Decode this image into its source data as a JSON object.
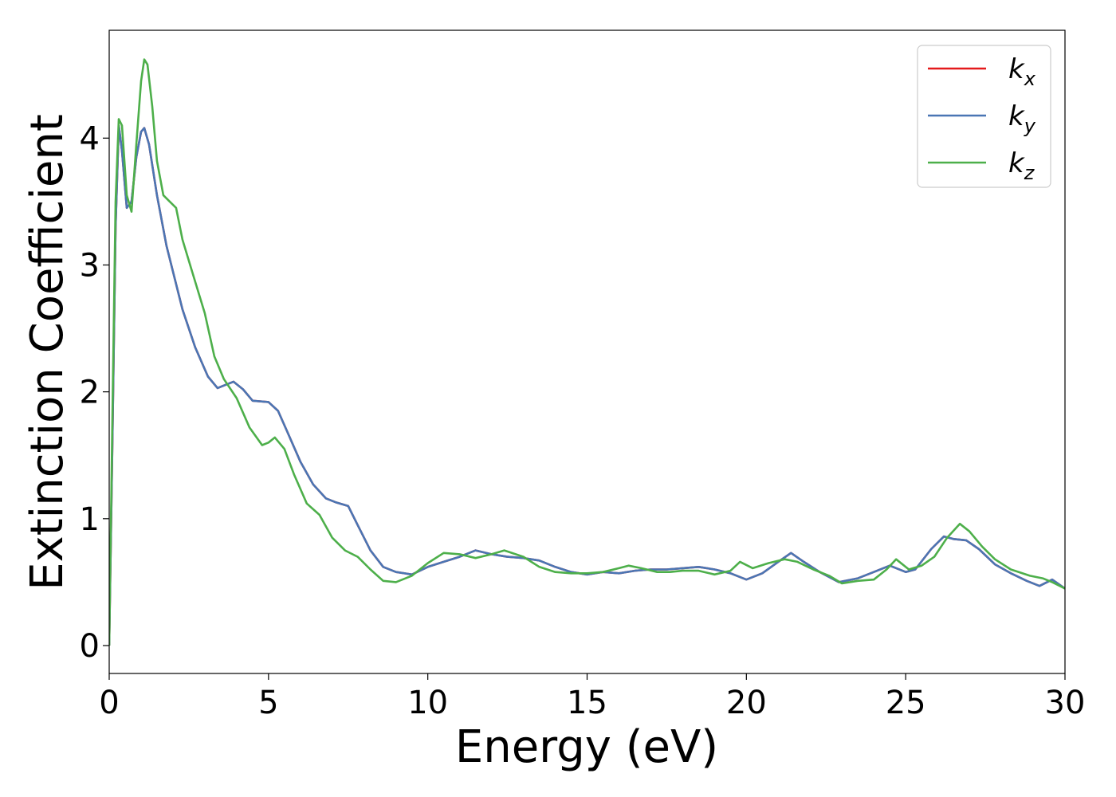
{
  "chart_data": {
    "type": "line",
    "xlabel": "Energy (eV)",
    "ylabel": "Extinction Coefficient",
    "xlim": [
      0,
      30
    ],
    "ylim": [
      -0.22,
      4.85
    ],
    "xticks": [
      0,
      5,
      10,
      15,
      20,
      25,
      30
    ],
    "yticks": [
      0,
      1,
      2,
      3,
      4
    ],
    "grid": false,
    "legend_position": "top-right",
    "series": [
      {
        "name": "k",
        "subscript": "x",
        "color": "#e41a1c",
        "x": [
          0,
          0.1,
          0.2,
          0.3,
          0.4,
          0.55,
          0.7,
          0.85,
          1.0,
          1.1,
          1.25,
          1.5,
          1.8,
          2.0,
          2.3,
          2.7,
          3.1,
          3.4,
          3.6,
          3.9,
          4.2,
          4.5,
          5.0,
          5.3,
          5.6,
          6.0,
          6.4,
          6.8,
          7.1,
          7.5,
          7.8,
          8.2,
          8.6,
          9.0,
          9.5,
          10.0,
          10.5,
          11.0,
          11.5,
          12.0,
          12.5,
          13.0,
          13.5,
          14.0,
          14.5,
          15.0,
          15.5,
          16.0,
          16.5,
          17.0,
          17.5,
          18.0,
          18.5,
          19.0,
          19.5,
          20.0,
          20.5,
          21.0,
          21.4,
          21.8,
          22.3,
          22.9,
          23.5,
          24.0,
          24.5,
          25.0,
          25.3,
          25.8,
          26.2,
          26.5,
          26.9,
          27.3,
          27.8,
          28.3,
          28.8,
          29.2,
          29.6,
          30.0
        ],
        "y": [
          0,
          1.6,
          3.3,
          4.1,
          3.9,
          3.45,
          3.5,
          3.85,
          4.05,
          4.08,
          3.95,
          3.55,
          3.15,
          2.95,
          2.65,
          2.35,
          2.12,
          2.03,
          2.05,
          2.08,
          2.02,
          1.93,
          1.92,
          1.85,
          1.68,
          1.45,
          1.27,
          1.16,
          1.13,
          1.1,
          0.95,
          0.75,
          0.62,
          0.58,
          0.56,
          0.62,
          0.66,
          0.7,
          0.75,
          0.72,
          0.7,
          0.69,
          0.67,
          0.62,
          0.58,
          0.56,
          0.58,
          0.57,
          0.59,
          0.6,
          0.6,
          0.61,
          0.62,
          0.6,
          0.57,
          0.52,
          0.57,
          0.66,
          0.73,
          0.66,
          0.58,
          0.5,
          0.53,
          0.58,
          0.63,
          0.58,
          0.6,
          0.76,
          0.86,
          0.84,
          0.83,
          0.76,
          0.64,
          0.57,
          0.51,
          0.47,
          0.52,
          0.45
        ]
      },
      {
        "name": "k",
        "subscript": "y",
        "color": "#4a76b4",
        "x": [
          0,
          0.1,
          0.2,
          0.3,
          0.4,
          0.55,
          0.7,
          0.85,
          1.0,
          1.1,
          1.25,
          1.5,
          1.8,
          2.0,
          2.3,
          2.7,
          3.1,
          3.4,
          3.6,
          3.9,
          4.2,
          4.5,
          5.0,
          5.3,
          5.6,
          6.0,
          6.4,
          6.8,
          7.1,
          7.5,
          7.8,
          8.2,
          8.6,
          9.0,
          9.5,
          10.0,
          10.5,
          11.0,
          11.5,
          12.0,
          12.5,
          13.0,
          13.5,
          14.0,
          14.5,
          15.0,
          15.5,
          16.0,
          16.5,
          17.0,
          17.5,
          18.0,
          18.5,
          19.0,
          19.5,
          20.0,
          20.5,
          21.0,
          21.4,
          21.8,
          22.3,
          22.9,
          23.5,
          24.0,
          24.5,
          25.0,
          25.3,
          25.8,
          26.2,
          26.5,
          26.9,
          27.3,
          27.8,
          28.3,
          28.8,
          29.2,
          29.6,
          30.0
        ],
        "y": [
          0,
          1.6,
          3.3,
          4.1,
          3.9,
          3.45,
          3.5,
          3.85,
          4.05,
          4.08,
          3.95,
          3.55,
          3.15,
          2.95,
          2.65,
          2.35,
          2.12,
          2.03,
          2.05,
          2.08,
          2.02,
          1.93,
          1.92,
          1.85,
          1.68,
          1.45,
          1.27,
          1.16,
          1.13,
          1.1,
          0.95,
          0.75,
          0.62,
          0.58,
          0.56,
          0.62,
          0.66,
          0.7,
          0.75,
          0.72,
          0.7,
          0.69,
          0.67,
          0.62,
          0.58,
          0.56,
          0.58,
          0.57,
          0.59,
          0.6,
          0.6,
          0.61,
          0.62,
          0.6,
          0.57,
          0.52,
          0.57,
          0.66,
          0.73,
          0.66,
          0.58,
          0.5,
          0.53,
          0.58,
          0.63,
          0.58,
          0.6,
          0.76,
          0.86,
          0.84,
          0.83,
          0.76,
          0.64,
          0.57,
          0.51,
          0.47,
          0.52,
          0.45
        ]
      },
      {
        "name": "k",
        "subscript": "z",
        "color": "#4daf4a",
        "x": [
          0,
          0.1,
          0.2,
          0.3,
          0.4,
          0.55,
          0.7,
          0.85,
          1.0,
          1.1,
          1.2,
          1.35,
          1.5,
          1.7,
          1.9,
          2.1,
          2.3,
          2.6,
          3.0,
          3.3,
          3.6,
          4.0,
          4.4,
          4.8,
          5.0,
          5.2,
          5.5,
          5.8,
          6.2,
          6.6,
          7.0,
          7.4,
          7.8,
          8.2,
          8.6,
          9.0,
          9.5,
          10.0,
          10.5,
          11.0,
          11.5,
          12.0,
          12.4,
          13.0,
          13.5,
          14.0,
          14.5,
          15.0,
          15.5,
          16.0,
          16.3,
          16.7,
          17.2,
          17.6,
          18.0,
          18.5,
          19.0,
          19.5,
          19.8,
          20.2,
          20.7,
          21.2,
          21.6,
          22.1,
          22.6,
          23.0,
          23.5,
          24.0,
          24.4,
          24.7,
          25.1,
          25.5,
          25.9,
          26.3,
          26.7,
          27.0,
          27.4,
          27.8,
          28.3,
          28.9,
          29.3,
          29.6,
          30.0
        ],
        "y": [
          0,
          1.8,
          3.5,
          4.15,
          4.1,
          3.55,
          3.42,
          3.95,
          4.45,
          4.62,
          4.58,
          4.25,
          3.82,
          3.55,
          3.5,
          3.45,
          3.2,
          2.95,
          2.62,
          2.28,
          2.1,
          1.95,
          1.72,
          1.58,
          1.6,
          1.64,
          1.55,
          1.35,
          1.12,
          1.03,
          0.85,
          0.75,
          0.7,
          0.6,
          0.51,
          0.5,
          0.55,
          0.65,
          0.73,
          0.72,
          0.69,
          0.72,
          0.75,
          0.7,
          0.62,
          0.58,
          0.57,
          0.57,
          0.58,
          0.61,
          0.63,
          0.61,
          0.58,
          0.58,
          0.59,
          0.59,
          0.56,
          0.59,
          0.66,
          0.61,
          0.65,
          0.68,
          0.66,
          0.6,
          0.55,
          0.49,
          0.51,
          0.52,
          0.6,
          0.68,
          0.6,
          0.63,
          0.7,
          0.85,
          0.96,
          0.9,
          0.78,
          0.68,
          0.6,
          0.55,
          0.53,
          0.5,
          0.45
        ]
      }
    ]
  }
}
